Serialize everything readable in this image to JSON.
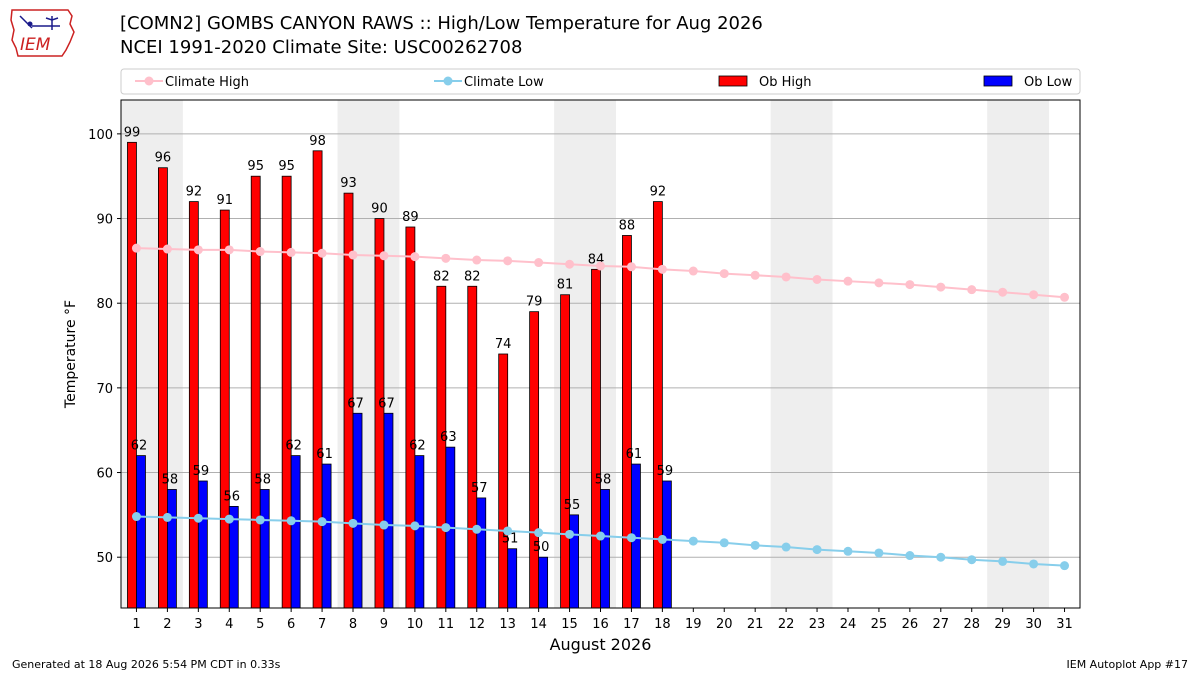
{
  "header": {
    "title_line1": "[COMN2] GOMBS CANYON RAWS :: High/Low Temperature for Aug 2026",
    "title_line2": "NCEI 1991-2020 Climate Site: USC00262708",
    "logo_text": "IEM"
  },
  "footer": {
    "generated": "Generated at 18 Aug 2026 5:54 PM CDT in 0.33s",
    "app": "IEM Autoplot App #17"
  },
  "chart_data": {
    "type": "bar",
    "xlabel": "August 2026",
    "ylabel": "Temperature °F",
    "xlim": [
      0.5,
      31.5
    ],
    "ylim": [
      44,
      104
    ],
    "yticks": [
      50,
      60,
      70,
      80,
      90,
      100
    ],
    "days": [
      1,
      2,
      3,
      4,
      5,
      6,
      7,
      8,
      9,
      10,
      11,
      12,
      13,
      14,
      15,
      16,
      17,
      18,
      19,
      20,
      21,
      22,
      23,
      24,
      25,
      26,
      27,
      28,
      29,
      30,
      31
    ],
    "weekend_bands": [
      [
        1,
        2
      ],
      [
        8,
        9
      ],
      [
        15,
        16
      ],
      [
        22,
        23
      ],
      [
        29,
        30
      ]
    ],
    "legend": {
      "placement": "top",
      "entries": [
        {
          "label": "Climate High",
          "kind": "line",
          "color": "#ffc0cb"
        },
        {
          "label": "Climate Low",
          "kind": "line",
          "color": "#87ceeb"
        },
        {
          "label": "Ob High",
          "kind": "bar",
          "color": "#ff0000"
        },
        {
          "label": "Ob Low",
          "kind": "bar",
          "color": "#0000ff"
        }
      ]
    },
    "series": [
      {
        "name": "Ob High",
        "type": "bar",
        "color": "#ff0000",
        "values": [
          99,
          96,
          92,
          91,
          95,
          95,
          98,
          93,
          90,
          89,
          82,
          82,
          74,
          79,
          81,
          84,
          88,
          92
        ]
      },
      {
        "name": "Ob Low",
        "type": "bar",
        "color": "#0000ff",
        "values": [
          62,
          58,
          59,
          56,
          58,
          62,
          61,
          67,
          67,
          62,
          63,
          57,
          51,
          50,
          55,
          58,
          61,
          59
        ]
      },
      {
        "name": "Climate High",
        "type": "line",
        "color": "#ffc0cb",
        "values": [
          86.5,
          86.4,
          86.3,
          86.3,
          86.1,
          86.0,
          85.9,
          85.7,
          85.6,
          85.5,
          85.3,
          85.1,
          85.0,
          84.8,
          84.6,
          84.4,
          84.3,
          84.0,
          83.8,
          83.5,
          83.3,
          83.1,
          82.8,
          82.6,
          82.4,
          82.2,
          81.9,
          81.6,
          81.3,
          81.0,
          80.7
        ]
      },
      {
        "name": "Climate Low",
        "type": "line",
        "color": "#87ceeb",
        "values": [
          54.8,
          54.7,
          54.6,
          54.5,
          54.4,
          54.3,
          54.2,
          54.0,
          53.8,
          53.7,
          53.5,
          53.3,
          53.1,
          52.9,
          52.7,
          52.5,
          52.3,
          52.1,
          51.9,
          51.7,
          51.4,
          51.2,
          50.9,
          50.7,
          50.5,
          50.2,
          50.0,
          49.7,
          49.5,
          49.2,
          49.0
        ]
      }
    ],
    "grid": "y",
    "weekend_band_color": "#eeeeee"
  }
}
